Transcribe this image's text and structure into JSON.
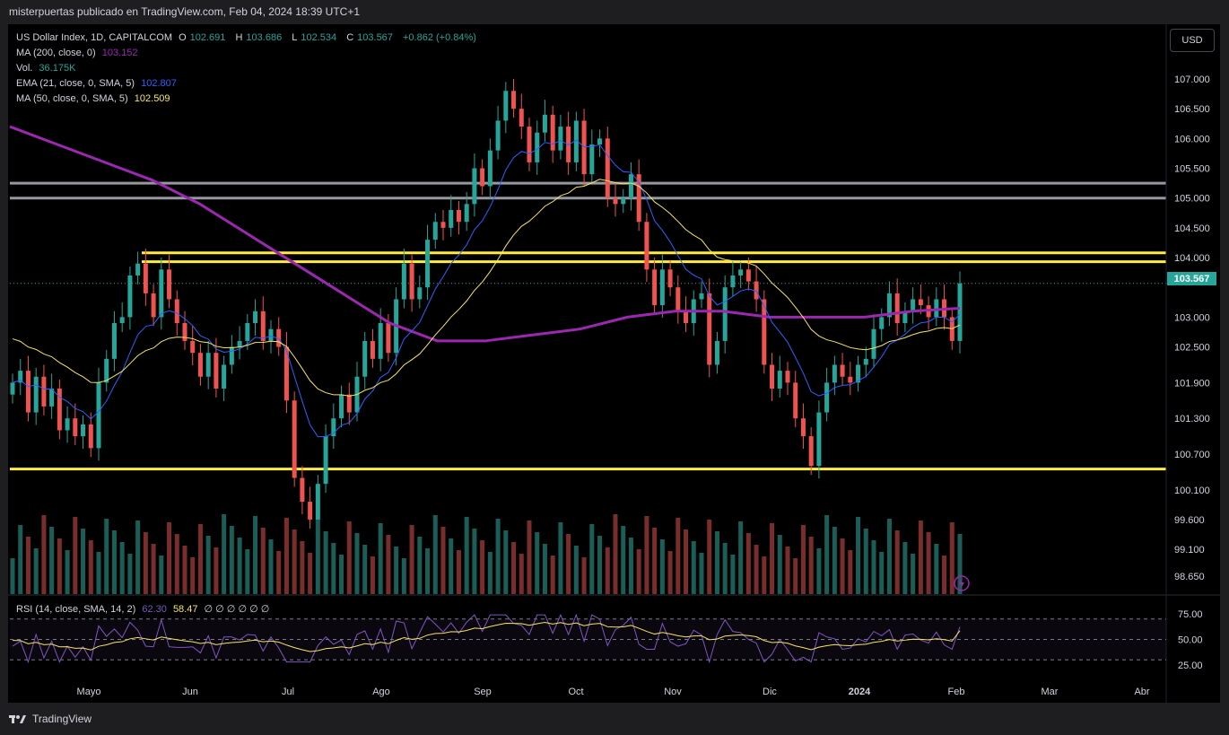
{
  "header": {
    "publisher": "misterpuertas publicado en TradingView.com, Feb 04, 2024 18:39 UTC+1"
  },
  "legend": {
    "symbol": "US Dollar Index, 1D, CAPITALCOM",
    "o_label": "O",
    "o_value": "102.691",
    "h_label": "H",
    "h_value": "103.686",
    "l_label": "L",
    "l_value": "102.534",
    "c_label": "C",
    "c_value": "103.567",
    "change": "+0.862 (+0.84%)",
    "ma200_label": "MA (200, close, 0)",
    "ma200_value": "103.152",
    "vol_label": "Vol.",
    "vol_value": "36.175K",
    "ema21_label": "EMA (21, close, 0, SMA, 5)",
    "ema21_value": "102.807",
    "ma50_label": "MA (50, close, 0, SMA, 5)",
    "ma50_value": "102.509",
    "rsi_label": "RSI (14, close, SMA, 14, 2)",
    "rsi_value": "62.30",
    "rsi_ma_value": "58.47",
    "rsi_extra": "∅ ∅ ∅ ∅ ∅ ∅"
  },
  "currency_button": "USD",
  "last_price": "103.567",
  "footer": {
    "brand": "TradingView"
  },
  "colors": {
    "up": "#26a69a",
    "down": "#ef5350",
    "ma200": "#9c27b0",
    "ema21": "#2962ff",
    "ma50": "#f7e463",
    "hline_yellow": "#ffeb3b",
    "hline_gray": "#9598a1",
    "rsi": "#7e57c2"
  },
  "chart_data": {
    "type": "candlestick",
    "y_axis_labels": [
      "107.000",
      "106.500",
      "106.000",
      "105.500",
      "105.000",
      "104.500",
      "104.000",
      "103.567",
      "103.000",
      "102.500",
      "101.900",
      "101.300",
      "100.700",
      "100.100",
      "99.600",
      "99.100",
      "98.650"
    ],
    "x_axis_labels": [
      "Mayo",
      "Jun",
      "Jul",
      "Ago",
      "Sep",
      "Oct",
      "Nov",
      "Dic",
      "2024",
      "Feb",
      "Mar",
      "Abr"
    ],
    "rsi_axis_labels": [
      "75.00",
      "50.00",
      "25.00"
    ],
    "horizontal_levels": [
      {
        "price": 105.25,
        "color": "gray"
      },
      {
        "price": 105.0,
        "color": "gray"
      },
      {
        "price": 104.08,
        "color": "yellow"
      },
      {
        "price": 103.93,
        "color": "yellow"
      },
      {
        "price": 100.45,
        "color": "yellow"
      }
    ],
    "close_path": [
      101.9,
      102.1,
      101.4,
      102.0,
      101.5,
      101.8,
      101.1,
      101.3,
      101.0,
      101.2,
      100.8,
      101.9,
      102.3,
      102.9,
      103.0,
      103.7,
      103.9,
      103.4,
      103.0,
      103.8,
      103.3,
      102.9,
      102.6,
      102.4,
      102.0,
      102.4,
      101.8,
      102.2,
      102.5,
      102.6,
      102.9,
      103.1,
      102.6,
      102.8,
      102.5,
      101.6,
      100.3,
      99.9,
      99.6,
      100.2,
      101.0,
      101.3,
      101.7,
      101.4,
      102.0,
      102.6,
      102.3,
      102.9,
      102.4,
      103.3,
      103.9,
      103.3,
      103.5,
      104.3,
      104.6,
      104.5,
      104.8,
      104.6,
      104.9,
      105.5,
      105.2,
      105.8,
      106.3,
      106.8,
      106.5,
      106.2,
      105.6,
      106.1,
      106.4,
      105.8,
      106.2,
      105.6,
      106.3,
      105.4,
      105.9,
      106.0,
      105.0,
      104.9,
      105.0,
      105.4,
      104.6,
      103.8,
      103.2,
      103.8,
      103.5,
      103.1,
      102.9,
      103.3,
      103.4,
      102.2,
      102.6,
      103.5,
      103.7,
      103.8,
      103.6,
      103.3,
      102.2,
      101.8,
      102.1,
      101.9,
      101.3,
      101.0,
      100.5,
      101.4,
      101.9,
      102.2,
      102.0,
      101.9,
      102.2,
      102.3,
      102.8,
      103.0,
      103.4,
      102.9,
      103.1,
      103.3,
      103.2,
      103.0,
      103.3,
      103.0,
      102.6,
      103.567
    ],
    "ma200_path": [
      106.2,
      105.9,
      105.6,
      105.3,
      104.9,
      104.4,
      103.9,
      103.4,
      102.9,
      102.6,
      102.6,
      102.7,
      102.8,
      103.0,
      103.1,
      103.1,
      103.0,
      103.0,
      103.0,
      103.1,
      103.15
    ],
    "rsi_last": 62.3,
    "rsi_ma_last": 58.47
  }
}
